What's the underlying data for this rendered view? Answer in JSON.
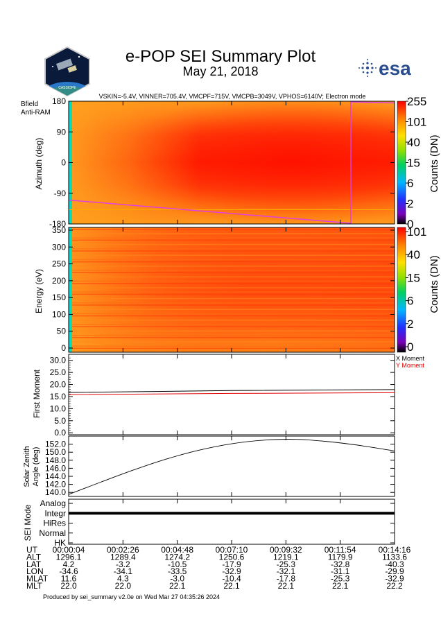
{
  "header": {
    "title": "e-POP SEI Summary Plot",
    "date": "May 21, 2018",
    "instrument_settings": "VSKIN=-5.4V, VINNER=705.4V, VMCPF=715V, VMCPB=3049V, VPHOS=6140V; Electron mode",
    "logo_left_caption": "CASSIOPE",
    "logo_right_text": "esa"
  },
  "legend": {
    "bfield": "Bfield",
    "antiram": "Anti-RAM",
    "x_moment": "X Moment",
    "y_moment": "Y Moment"
  },
  "colors": {
    "bfield": "#e040e0",
    "antiram": "#ffa800",
    "y_moment": "#e00000",
    "x_moment": "#000000"
  },
  "footer": "Produced by sei_summary v2.0e on Wed Mar 27 04:35:26 2024",
  "chart_data": [
    {
      "type": "heatmap",
      "name": "azimuth-spectrogram",
      "ylabel": "Azimuth (deg)",
      "ylim": [
        -180,
        180
      ],
      "yticks": [
        180,
        90,
        0,
        -90,
        -180
      ],
      "colorbar": {
        "label": "Counts (DN)",
        "ticks": [
          "255",
          "101",
          "40",
          "15",
          "6",
          "2",
          "0"
        ]
      },
      "bfield_line": {
        "t": [
          0,
          0.866,
          0.866,
          1.0
        ],
        "azimuth": [
          -110,
          -178,
          178,
          175
        ]
      },
      "antiram_azimuth": -138
    },
    {
      "type": "heatmap",
      "name": "energy-spectrogram",
      "ylabel": "Energy (eV)",
      "ylim": [
        0,
        350
      ],
      "yticks": [
        350,
        300,
        250,
        200,
        150,
        100,
        50,
        0
      ],
      "colorbar": {
        "label": "Counts (DN)",
        "ticks": [
          "101",
          "40",
          "15",
          "6",
          "2",
          "0"
        ]
      }
    },
    {
      "type": "line",
      "name": "first-moment",
      "ylabel": "First Moment",
      "ylim": [
        -0.8,
        32.5
      ],
      "yticks": [
        "30.0",
        "25.0",
        "20.0",
        "15.0",
        "10.0",
        "5.0",
        "0.0"
      ],
      "series": [
        {
          "name": "X Moment",
          "t": [
            0,
            0.5,
            1.0
          ],
          "values": [
            16.7,
            17.5,
            17.9
          ]
        },
        {
          "name": "Y Moment",
          "t": [
            0,
            0.5,
            1.0
          ],
          "values": [
            15.8,
            16.3,
            16.6
          ]
        }
      ]
    },
    {
      "type": "line",
      "name": "solar-zenith-angle",
      "ylabel": "Solar Zenith Angle (deg)",
      "ylim": [
        139.0,
        154.0
      ],
      "yticks": [
        "152.0",
        "150.0",
        "148.0",
        "146.0",
        "144.0",
        "142.0",
        "140.0"
      ],
      "series": [
        {
          "name": "SZA",
          "t": [
            0,
            0.1,
            0.2,
            0.3,
            0.4,
            0.5,
            0.6,
            0.7,
            0.8,
            0.9,
            1.0
          ],
          "values": [
            139.5,
            142.6,
            145.6,
            148.3,
            150.5,
            152.1,
            153.0,
            153.2,
            152.6,
            151.6,
            150.3
          ]
        }
      ]
    },
    {
      "type": "line",
      "name": "sei-mode",
      "ylabel": "SEI Mode",
      "categories": [
        "Analog",
        "Integr",
        "HiRes",
        "Normal",
        "HK"
      ],
      "mode": "Integr"
    }
  ],
  "ephemeris": {
    "row_labels": [
      "UT",
      "ALT",
      "LAT",
      "LON",
      "MLAT",
      "MLT"
    ],
    "columns": [
      [
        "00:00:04",
        "1296.1",
        "4.2",
        "-34.6",
        "11.6",
        "22.0"
      ],
      [
        "00:02:26",
        "1289.4",
        "-3.2",
        "-34.1",
        "4.3",
        "22.0"
      ],
      [
        "00:04:48",
        "1274.2",
        "-10.5",
        "-33.5",
        "-3.0",
        "22.1"
      ],
      [
        "00:07:10",
        "1250.6",
        "-17.9",
        "-32.9",
        "-10.4",
        "22.1"
      ],
      [
        "00:09:32",
        "1219.1",
        "-25.3",
        "-32.1",
        "-17.8",
        "22.1"
      ],
      [
        "00:11:54",
        "1179.9",
        "-32.8",
        "-31.1",
        "-25.3",
        "22.1"
      ],
      [
        "00:14:16",
        "1133.6",
        "-40.3",
        "-29.9",
        "-32.9",
        "22.2"
      ]
    ]
  }
}
